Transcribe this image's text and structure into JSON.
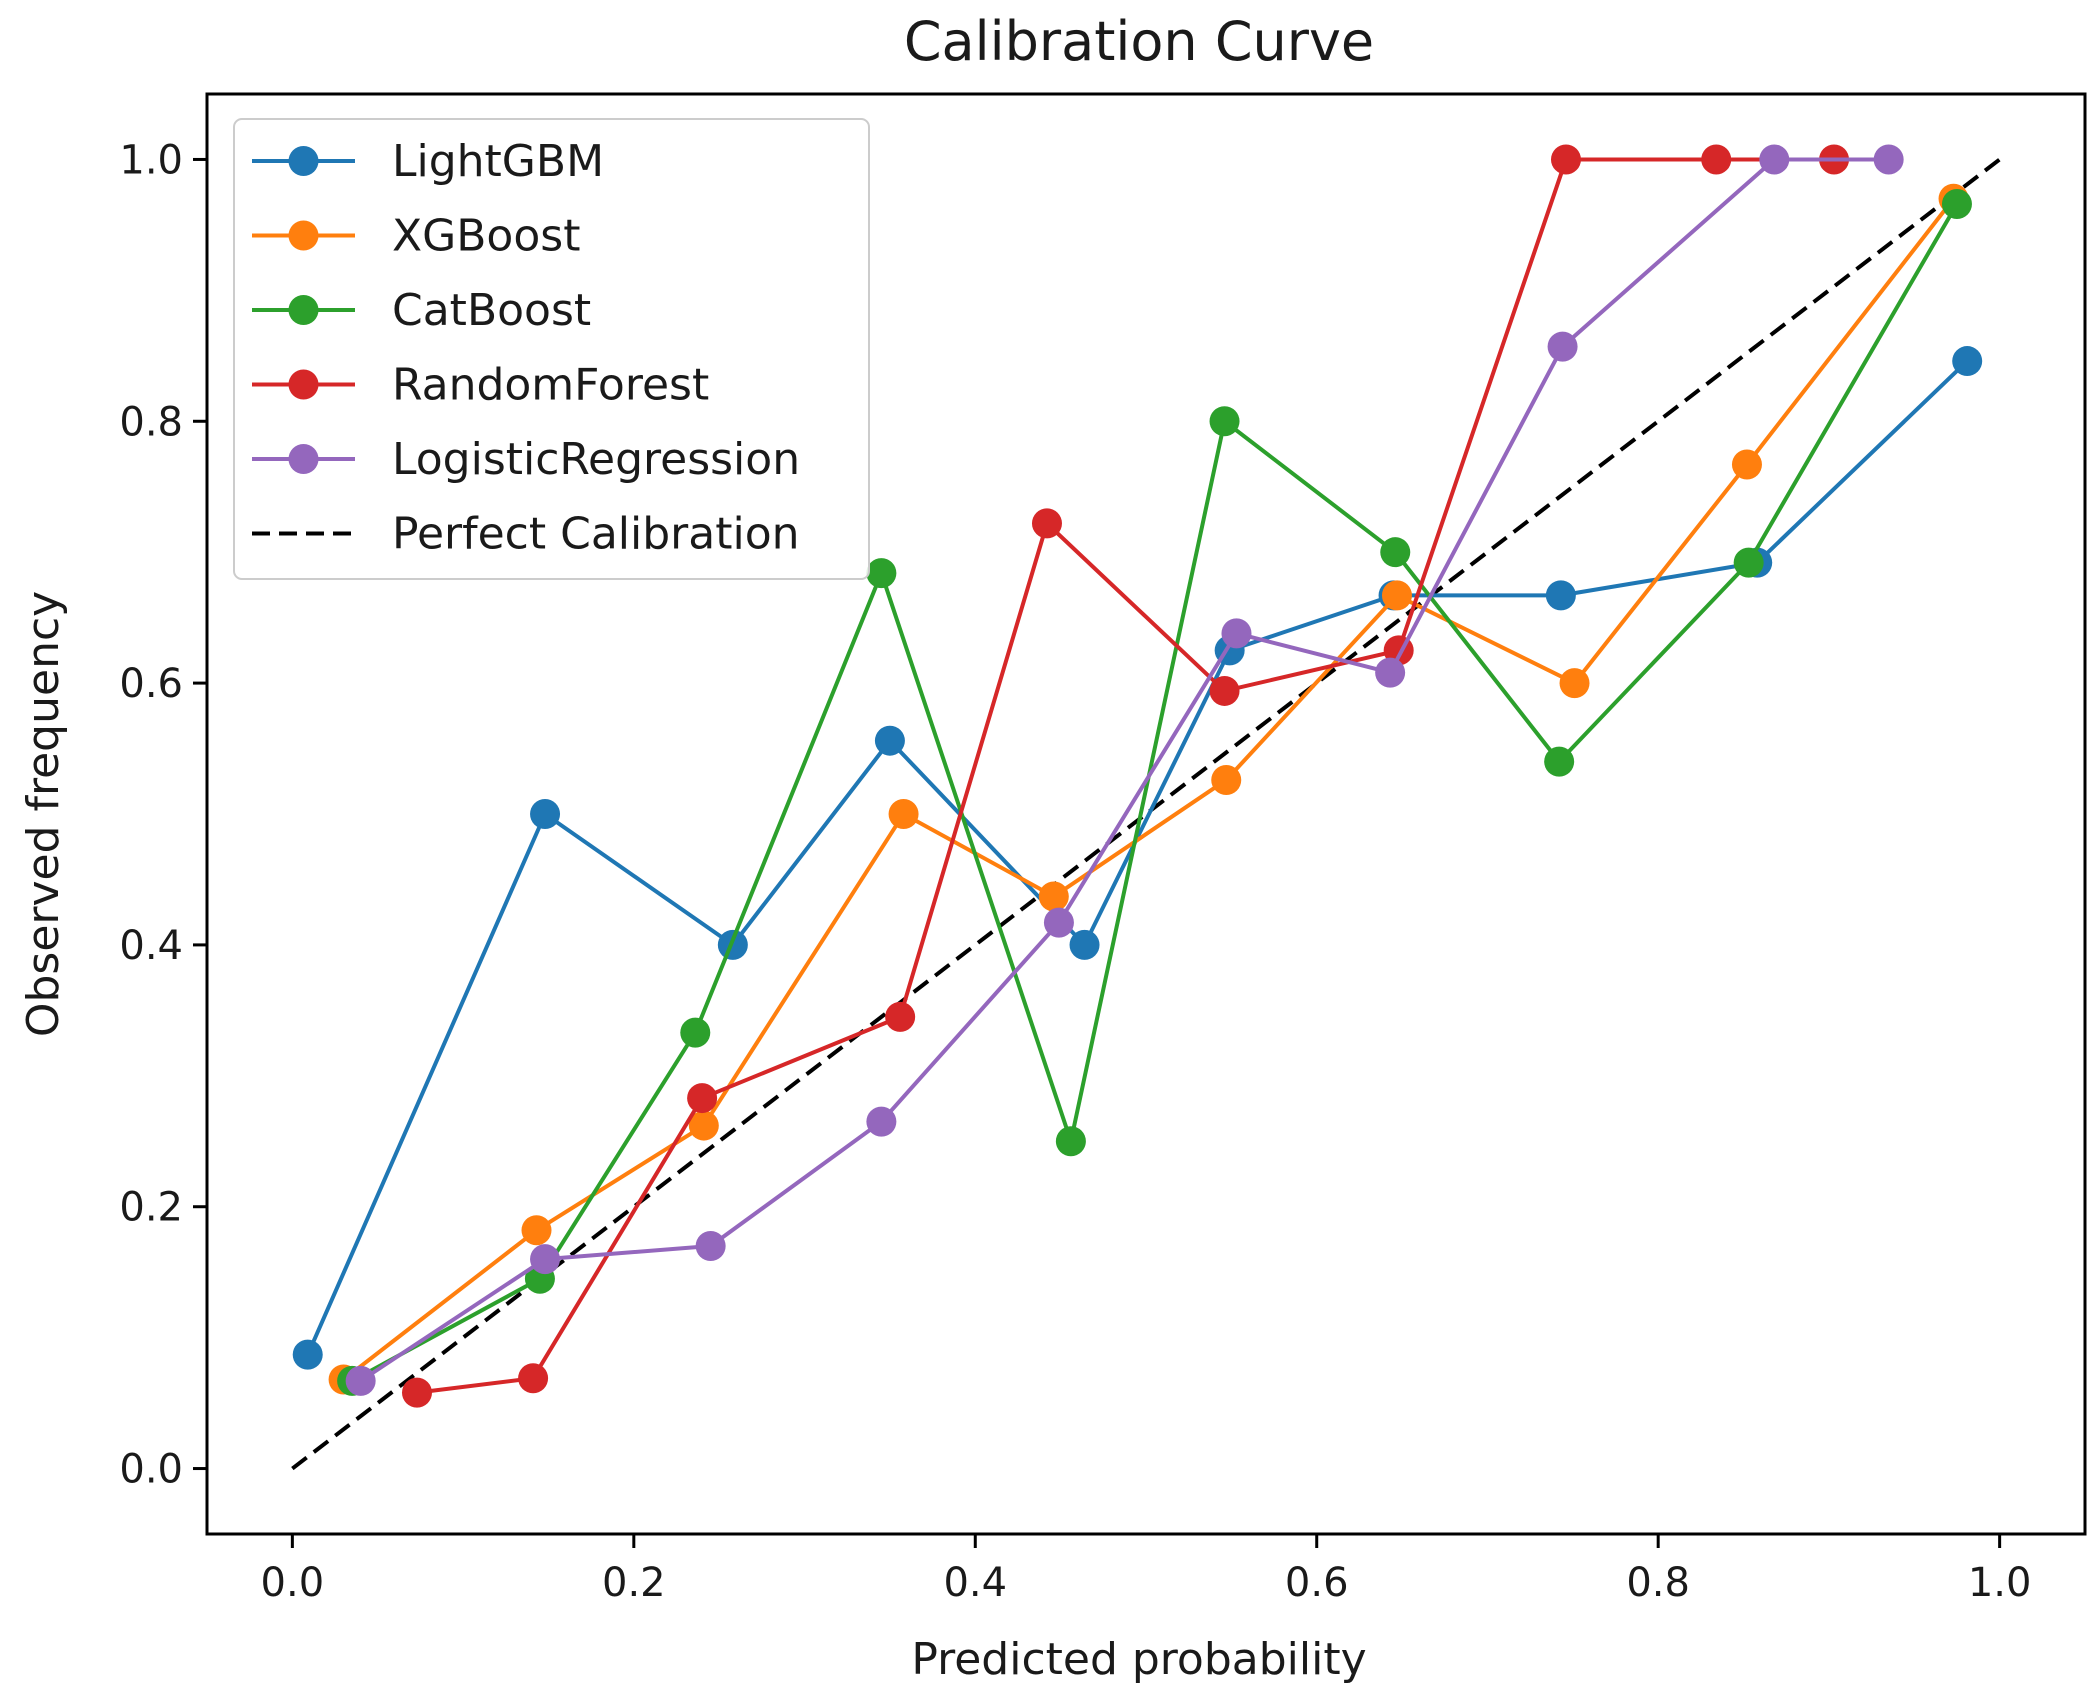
{
  "chart_data": {
    "type": "line",
    "title": "Calibration Curve",
    "xlabel": "Predicted probability",
    "ylabel": "Observed frequency",
    "xlim": [
      -0.05,
      1.05
    ],
    "ylim": [
      -0.05,
      1.05
    ],
    "xticks": [
      0.0,
      0.2,
      0.4,
      0.6,
      0.8,
      1.0
    ],
    "yticks": [
      0.0,
      0.2,
      0.4,
      0.6,
      0.8,
      1.0
    ],
    "xtick_labels": [
      "0.0",
      "0.2",
      "0.4",
      "0.6",
      "0.8",
      "1.0"
    ],
    "ytick_labels": [
      "0.0",
      "0.2",
      "0.4",
      "0.6",
      "0.8",
      "1.0"
    ],
    "grid": false,
    "legend_position": "top-left",
    "series": [
      {
        "name": "LightGBM",
        "color": "#1f77b4",
        "x": [
          0.009,
          0.148,
          0.258,
          0.35,
          0.464,
          0.549,
          0.645,
          0.743,
          0.858,
          0.981
        ],
        "y": [
          0.087,
          0.5,
          0.4,
          0.556,
          0.4,
          0.625,
          0.667,
          0.667,
          0.692,
          0.846
        ]
      },
      {
        "name": "XGBoost",
        "color": "#ff7f0e",
        "x": [
          0.03,
          0.143,
          0.241,
          0.358,
          0.446,
          0.547,
          0.647,
          0.751,
          0.852,
          0.973
        ],
        "y": [
          0.068,
          0.182,
          0.262,
          0.5,
          0.437,
          0.526,
          0.667,
          0.6,
          0.767,
          0.97
        ]
      },
      {
        "name": "CatBoost",
        "color": "#2ca02c",
        "x": [
          0.035,
          0.145,
          0.236,
          0.345,
          0.456,
          0.546,
          0.646,
          0.742,
          0.853,
          0.975
        ],
        "y": [
          0.067,
          0.145,
          0.333,
          0.684,
          0.25,
          0.8,
          0.7,
          0.54,
          0.692,
          0.966
        ]
      },
      {
        "name": "RandomForest",
        "color": "#d62728",
        "x": [
          0.073,
          0.141,
          0.24,
          0.356,
          0.442,
          0.546,
          0.648,
          0.746,
          0.834,
          0.903
        ],
        "y": [
          0.058,
          0.069,
          0.283,
          0.345,
          0.722,
          0.594,
          0.625,
          1.0,
          1.0,
          1.0
        ]
      },
      {
        "name": "LogisticRegression",
        "color": "#9467bd",
        "x": [
          0.04,
          0.148,
          0.245,
          0.345,
          0.449,
          0.553,
          0.643,
          0.744,
          0.868,
          0.935
        ],
        "y": [
          0.067,
          0.16,
          0.17,
          0.265,
          0.417,
          0.638,
          0.608,
          0.857,
          1.0,
          1.0
        ]
      }
    ],
    "reference_line": {
      "name": "Perfect Calibration",
      "color": "#000000",
      "style": "dashed",
      "x": [
        0.0,
        1.0
      ],
      "y": [
        0.0,
        1.0
      ]
    }
  }
}
